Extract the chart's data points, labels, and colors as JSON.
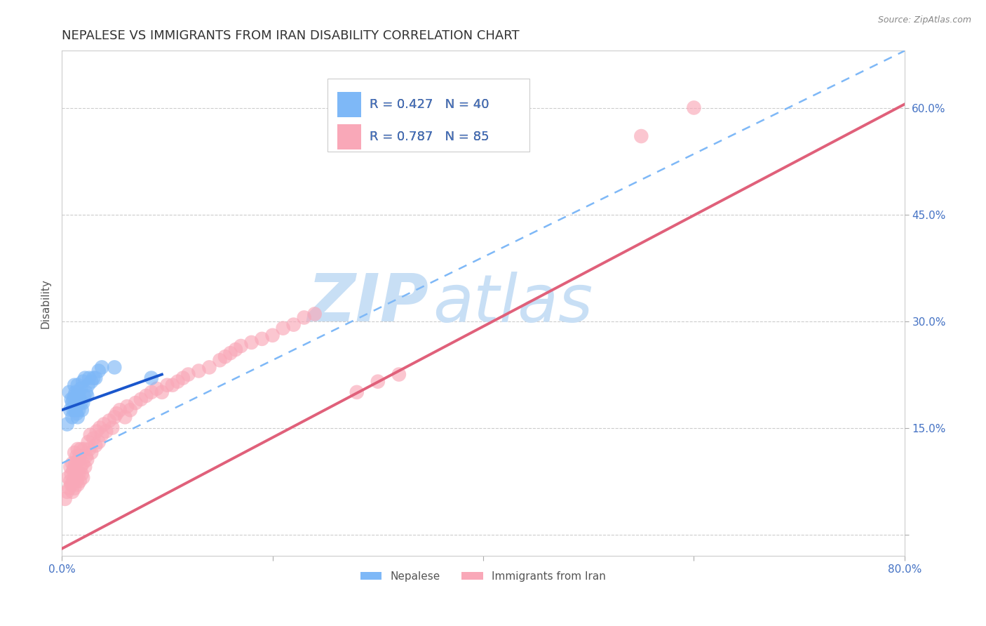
{
  "title": "NEPALESE VS IMMIGRANTS FROM IRAN DISABILITY CORRELATION CHART",
  "source": "Source: ZipAtlas.com",
  "ylabel": "Disability",
  "xmin": 0.0,
  "xmax": 0.8,
  "ymin": -0.03,
  "ymax": 0.68,
  "yticks": [
    0.0,
    0.15,
    0.3,
    0.45,
    0.6
  ],
  "ytick_labels": [
    "",
    "15.0%",
    "30.0%",
    "45.0%",
    "60.0%"
  ],
  "xticks": [
    0.0,
    0.2,
    0.4,
    0.6,
    0.8
  ],
  "xtick_labels": [
    "0.0%",
    "",
    "",
    "",
    "80.0%"
  ],
  "nepalese_color": "#7eb8f7",
  "iran_color": "#f9a8b8",
  "nepalese_R": 0.427,
  "nepalese_N": 40,
  "iran_R": 0.787,
  "iran_N": 85,
  "legend_label1": "Nepalese",
  "legend_label2": "Immigrants from Iran",
  "watermark1": "ZIP",
  "watermark2": "atlas",
  "watermark_color": "#c8dff5",
  "background_color": "#ffffff",
  "title_color": "#333333",
  "axis_label_color": "#555555",
  "tick_color": "#4472c4",
  "nepalese_scatter_x": [
    0.005,
    0.007,
    0.008,
    0.009,
    0.01,
    0.01,
    0.011,
    0.011,
    0.012,
    0.012,
    0.012,
    0.013,
    0.013,
    0.013,
    0.014,
    0.014,
    0.015,
    0.015,
    0.015,
    0.016,
    0.016,
    0.017,
    0.018,
    0.018,
    0.019,
    0.02,
    0.02,
    0.021,
    0.022,
    0.023,
    0.024,
    0.025,
    0.026,
    0.028,
    0.03,
    0.032,
    0.035,
    0.038,
    0.05,
    0.085
  ],
  "nepalese_scatter_y": [
    0.155,
    0.2,
    0.175,
    0.19,
    0.185,
    0.165,
    0.175,
    0.19,
    0.18,
    0.195,
    0.21,
    0.175,
    0.185,
    0.2,
    0.17,
    0.195,
    0.165,
    0.185,
    0.21,
    0.175,
    0.195,
    0.19,
    0.185,
    0.205,
    0.175,
    0.215,
    0.185,
    0.195,
    0.22,
    0.2,
    0.195,
    0.21,
    0.22,
    0.215,
    0.22,
    0.22,
    0.23,
    0.235,
    0.235,
    0.22
  ],
  "iran_scatter_x": [
    0.003,
    0.005,
    0.006,
    0.007,
    0.008,
    0.008,
    0.009,
    0.009,
    0.01,
    0.01,
    0.011,
    0.011,
    0.012,
    0.012,
    0.012,
    0.013,
    0.013,
    0.014,
    0.014,
    0.015,
    0.015,
    0.015,
    0.016,
    0.016,
    0.017,
    0.017,
    0.018,
    0.018,
    0.019,
    0.02,
    0.02,
    0.021,
    0.022,
    0.023,
    0.024,
    0.025,
    0.026,
    0.027,
    0.028,
    0.03,
    0.032,
    0.033,
    0.035,
    0.036,
    0.038,
    0.04,
    0.042,
    0.045,
    0.048,
    0.05,
    0.052,
    0.055,
    0.06,
    0.062,
    0.065,
    0.07,
    0.075,
    0.08,
    0.085,
    0.09,
    0.095,
    0.1,
    0.105,
    0.11,
    0.115,
    0.12,
    0.13,
    0.14,
    0.15,
    0.155,
    0.16,
    0.165,
    0.17,
    0.18,
    0.19,
    0.2,
    0.21,
    0.22,
    0.23,
    0.24,
    0.28,
    0.3,
    0.32,
    0.55,
    0.6
  ],
  "iran_scatter_y": [
    0.05,
    0.06,
    0.08,
    0.065,
    0.075,
    0.095,
    0.07,
    0.085,
    0.06,
    0.1,
    0.075,
    0.09,
    0.065,
    0.095,
    0.115,
    0.08,
    0.1,
    0.075,
    0.11,
    0.07,
    0.09,
    0.12,
    0.085,
    0.105,
    0.075,
    0.11,
    0.095,
    0.12,
    0.085,
    0.08,
    0.1,
    0.12,
    0.095,
    0.11,
    0.105,
    0.13,
    0.12,
    0.14,
    0.115,
    0.135,
    0.125,
    0.145,
    0.13,
    0.15,
    0.14,
    0.155,
    0.145,
    0.16,
    0.15,
    0.165,
    0.17,
    0.175,
    0.165,
    0.18,
    0.175,
    0.185,
    0.19,
    0.195,
    0.2,
    0.205,
    0.2,
    0.21,
    0.21,
    0.215,
    0.22,
    0.225,
    0.23,
    0.235,
    0.245,
    0.25,
    0.255,
    0.26,
    0.265,
    0.27,
    0.275,
    0.28,
    0.29,
    0.295,
    0.305,
    0.31,
    0.2,
    0.215,
    0.225,
    0.56,
    0.6
  ],
  "nepalese_line_x": [
    0.0,
    0.095
  ],
  "nepalese_line_y": [
    0.175,
    0.225
  ],
  "iran_line_x": [
    0.0,
    0.8
  ],
  "iran_line_y": [
    -0.02,
    0.605
  ],
  "nepalese_dashed_line_x": [
    0.0,
    0.8
  ],
  "nepalese_dashed_line_y": [
    0.1,
    0.68
  ],
  "grid_color": "#cccccc",
  "title_fontsize": 13,
  "axis_fontsize": 11,
  "tick_fontsize": 11
}
